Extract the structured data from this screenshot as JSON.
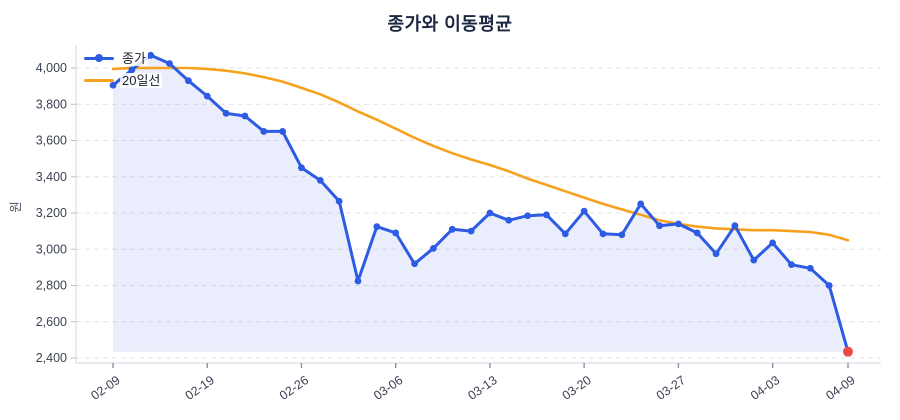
{
  "chart_data": {
    "type": "line",
    "title": "종가와 이동평균",
    "xlabel": "",
    "ylabel": "원",
    "ylim": [
      2400,
      4000
    ],
    "y_ticks": [
      2400,
      2600,
      2800,
      3000,
      3200,
      3400,
      3600,
      3800,
      4000
    ],
    "grid": true,
    "legend_position": "top-left",
    "n_points": 40,
    "x_ticks": [
      {
        "index": 0,
        "label": "02-09"
      },
      {
        "index": 5,
        "label": "02-19"
      },
      {
        "index": 10,
        "label": "02-26"
      },
      {
        "index": 15,
        "label": "03-06"
      },
      {
        "index": 20,
        "label": "03-13"
      },
      {
        "index": 25,
        "label": "03-20"
      },
      {
        "index": 30,
        "label": "03-27"
      },
      {
        "index": 35,
        "label": "04-03"
      },
      {
        "index": 39,
        "label": "04-09"
      }
    ],
    "series": [
      {
        "name": "종가",
        "color": "#2d5be3",
        "markers": true,
        "area_fill": true,
        "area_fill_color": "rgba(45,91,227,0.10)",
        "last_point_color": "#e94b4b",
        "values": [
          3905,
          3990,
          4070,
          4025,
          3930,
          3845,
          3750,
          3735,
          3650,
          3650,
          3450,
          3380,
          3265,
          2825,
          3125,
          3090,
          2920,
          3005,
          3110,
          3100,
          3200,
          3160,
          3185,
          3190,
          3085,
          3210,
          3085,
          3080,
          3250,
          3130,
          3140,
          3090,
          2975,
          3130,
          2940,
          3035,
          2915,
          2895,
          2800,
          2435
        ]
      },
      {
        "name": "20일선",
        "color": "#f6a21e",
        "markers": false,
        "values": [
          3995,
          4000,
          4000,
          4000,
          4000,
          3995,
          3985,
          3970,
          3950,
          3925,
          3890,
          3855,
          3810,
          3760,
          3715,
          3665,
          3615,
          3570,
          3530,
          3495,
          3465,
          3430,
          3390,
          3355,
          3320,
          3285,
          3250,
          3220,
          3190,
          3160,
          3140,
          3125,
          3115,
          3110,
          3105,
          3105,
          3100,
          3095,
          3080,
          3050
        ]
      }
    ]
  },
  "style": {
    "grid_color": "#e3e3e6",
    "spine_color": "#cfd4dc",
    "tick_color": "#b9bec9",
    "tick_label_color": "#3b4252",
    "axis_title_color": "#4a5163",
    "title_color": "#1c2742"
  }
}
